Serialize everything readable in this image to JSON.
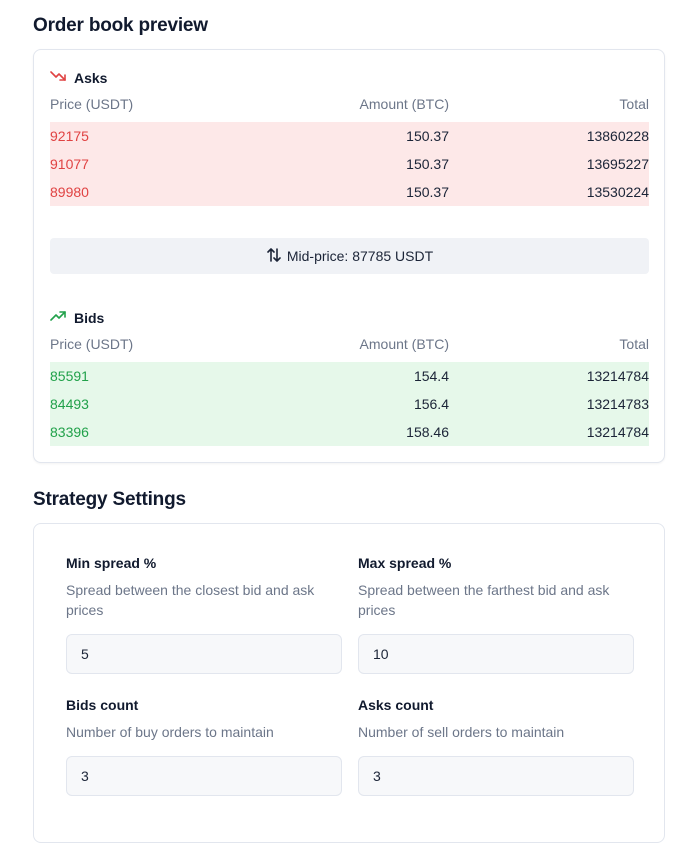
{
  "order_book": {
    "title": "Order book preview",
    "asks": {
      "heading": "Asks",
      "columns": [
        "Price (USDT)",
        "Amount (BTC)",
        "Total"
      ],
      "rows": [
        {
          "price": "92175",
          "amount": "150.37",
          "total": "13860228"
        },
        {
          "price": "91077",
          "amount": "150.37",
          "total": "13695227"
        },
        {
          "price": "89980",
          "amount": "150.37",
          "total": "13530224"
        }
      ]
    },
    "mid_price": "Mid-price: 87785 USDT",
    "bids": {
      "heading": "Bids",
      "columns": [
        "Price (USDT)",
        "Amount (BTC)",
        "Total"
      ],
      "rows": [
        {
          "price": "85591",
          "amount": "154.4",
          "total": "13214784"
        },
        {
          "price": "84493",
          "amount": "156.4",
          "total": "13214783"
        },
        {
          "price": "83396",
          "amount": "158.46",
          "total": "13214784"
        }
      ]
    }
  },
  "strategy": {
    "title": "Strategy Settings",
    "fields": [
      {
        "label": "Min spread %",
        "description": "Spread between the closest bid and ask prices",
        "value": "5"
      },
      {
        "label": "Max spread %",
        "description": "Spread between the farthest bid and ask prices",
        "value": "10"
      },
      {
        "label": "Bids count",
        "description": "Number of buy orders to maintain",
        "value": "3"
      },
      {
        "label": "Asks count",
        "description": "Number of sell orders to maintain",
        "value": "3"
      }
    ]
  },
  "colors": {
    "ask": "#e04343",
    "bid": "#21a14a",
    "ask_bg": "#fde8e8",
    "bid_bg": "#e6f8ea"
  }
}
